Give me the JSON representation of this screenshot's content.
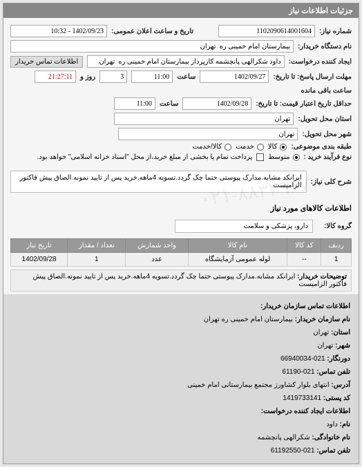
{
  "panel": {
    "title": "جزئیات اطلاعات نیاز"
  },
  "form": {
    "req_no_label": "شماره نیاز:",
    "req_no": "1102090614001604",
    "announce_label": "تاریخ و ساعت اعلان عمومی:",
    "announce": "1402/09/23 - 10:32",
    "buyer_org_label": "نام دستگاه خریدار:",
    "buyer_org": "بیمارستان امام خمینی ره  تهران",
    "creator_label": "ایجاد کننده درخواست:",
    "creator": "داود شکرالهی پانچشمه کارپرداز بیمارستان امام خمینی ره  تهران",
    "contact_btn": "اطلاعات تماس خریدار",
    "resp_deadline_label": "مهلت ارسال پاسخ: تا تاریخ:",
    "resp_date": "1402/09/27",
    "time_label": "ساعت",
    "resp_time": "11:00",
    "remain_days": "3",
    "remain_days_label": "روز و",
    "remain_time": "21:27:11",
    "remain_suffix": "ساعت باقی مانده",
    "price_deadline_label": "حداقل تاریخ اعتبار قیمت: تا تاریخ:",
    "price_date": "1402/09/28",
    "price_time": "11:00",
    "delivery_prov_label": "استان محل تحویل:",
    "delivery_prov": "تهران",
    "delivery_city_label": "شهر محل تحویل:",
    "delivery_city": "تهران",
    "budget_label": "طبقه بندی موضوعی:",
    "budget_opts": {
      "goods": "کالا",
      "service": "خدمت",
      "both": "کالا/خدمت"
    },
    "buy_type_label": "نوع فرآیند خرید :",
    "buy_opts": {
      "mid": "متوسط"
    },
    "pay_note": "پرداخت تمام یا بخشی از مبلغ خرید،از محل \"اسناد خزانه اسلامی\" خواهد بود."
  },
  "key": {
    "label": "شرح کلی نیاز:",
    "text": "ایرانکد مشابه.مدارک پیوستی حتما چک گردد.تسویه 4ماهه.خرید پس از تایید نمونه.الصاق پیش فاکتور الزامیست"
  },
  "goods": {
    "section": "اطلاعات کالاهای مورد نیاز",
    "group_label": "گروه کالا:",
    "group": "دارو، پزشکی و سلامت"
  },
  "table": {
    "cols": [
      "ردیف",
      "کد کالا",
      "نام کالا",
      "واحد شمارش",
      "تعداد / مقدار",
      "تاریخ نیاز"
    ],
    "row": {
      "idx": "1",
      "code": "--",
      "name": "لوله عمومی آزمایشگاه",
      "unit": "عدد",
      "qty": "1",
      "date": "1402/09/28"
    }
  },
  "remarks": {
    "label": "توضیحات خریدار:",
    "text": "ایرانکد مشابه.مدارک پیوستی حتما چک گردد.تسویه 4ماهه.خرید پس از تایید نمونه.الصاق پیش فاکتور الزامیست"
  },
  "contact": {
    "header": "اطلاعات تماس سازمان خریدار:",
    "org_label": "نام سازمان خریدار:",
    "org": "بیمارستان امام خمینی ره تهران",
    "prov_label": "استان:",
    "prov": "تهران",
    "city_label": "شهر:",
    "city": "تهران",
    "fax_label": "دورنگار:",
    "fax": "021-66940034",
    "tel_label": "تلفن تماس:",
    "tel": "021-61190",
    "addr_label": "آدرس:",
    "addr": "انتهای بلوار کشاورز مجتمع بیمارستانی امام خمینی",
    "post_label": "کد پستی:",
    "post": "1419733141",
    "creator_header": "اطلاعات ایجاد کننده درخواست:",
    "name_label": "نام:",
    "name": "داود",
    "lname_label": "نام خانوادگی:",
    "lname": "شکرالهی پانچشمه",
    "ctel_label": "تلفن تماس:",
    "ctel": "021-61192550"
  },
  "watermark": "۰۲۱-۸۸۳۴۹۶۷۰"
}
